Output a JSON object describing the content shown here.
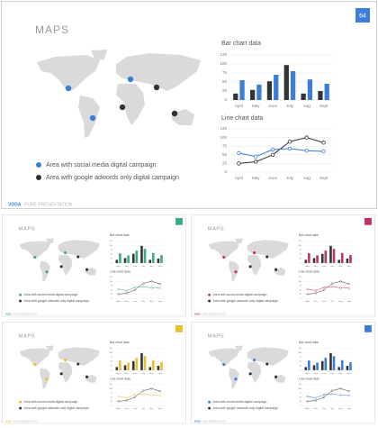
{
  "slide": {
    "title": "MAPS",
    "page_number": "64",
    "footer_brand": "VODA",
    "footer_text": "PURE PRESENTATION"
  },
  "legend": [
    "Area with social media digital campaign",
    "Area with google adwords only digital campaign"
  ],
  "dark_color": "#333333",
  "themes": [
    {
      "accent": "#3b7dd8"
    },
    {
      "accent": "#3aaa8a"
    },
    {
      "accent": "#c0306a"
    },
    {
      "accent": "#e8c12a"
    },
    {
      "accent": "#3b7dd8"
    }
  ],
  "chart_data": [
    {
      "type": "bar",
      "title": "Bar chart data",
      "categories": [
        "April",
        "May",
        "June",
        "July",
        "Aug",
        "Sept"
      ],
      "series": [
        {
          "color": "#333333",
          "values": [
            18,
            28,
            52,
            97,
            18,
            25
          ]
        },
        {
          "values": [
            55,
            43,
            70,
            80,
            57,
            45
          ]
        }
      ],
      "ylim": [
        0,
        125
      ],
      "yticks": [
        0,
        25,
        50,
        75,
        100,
        125
      ],
      "grid": true
    },
    {
      "type": "line",
      "title": "Line chart data",
      "categories": [
        "April",
        "May",
        "June",
        "July",
        "Aug",
        "Sept"
      ],
      "series": [
        {
          "color": "#333333",
          "values": [
            25,
            30,
            50,
            88,
            100,
            85
          ]
        },
        {
          "values": [
            55,
            45,
            65,
            68,
            62,
            60
          ]
        }
      ],
      "ylim": [
        0,
        125
      ],
      "yticks": [
        0,
        25,
        50,
        75,
        100,
        125
      ],
      "grid": true
    }
  ]
}
